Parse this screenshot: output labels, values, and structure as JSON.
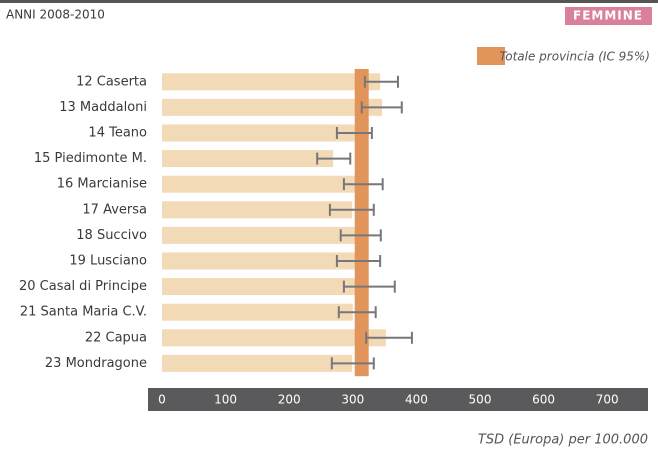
{
  "chart_data": {
    "type": "bar",
    "period": "ANNI 2008-2010",
    "badge": "FEMMINE",
    "x_label": "TSD (Europa) per 100.000",
    "categories": [
      "12 Caserta",
      "13 Maddaloni",
      "14 Teano",
      "15 Piedimonte M.",
      "16 Marcianise",
      "17 Aversa",
      "18 Succivo",
      "19 Lusciano",
      "20 Casal di Principe",
      "21 Santa Maria C.V.",
      "22 Capua",
      "23 Mondragone"
    ],
    "values": [
      343,
      346,
      303,
      269,
      314,
      299,
      311,
      308,
      325,
      300,
      352,
      299
    ],
    "ci_low": [
      319,
      314,
      275,
      244,
      286,
      264,
      281,
      275,
      286,
      278,
      321,
      267
    ],
    "ci_high": [
      371,
      377,
      330,
      296,
      347,
      333,
      344,
      343,
      366,
      336,
      393,
      333
    ],
    "color": "#f3dab6",
    "error_color": "#77777a",
    "province": {
      "name": "Totale provincia (IC 95%)",
      "low": 303,
      "high": 325,
      "color": "#e2955b"
    },
    "xlim": [
      0,
      780
    ],
    "xticks": [
      0,
      100,
      200,
      300,
      400,
      500,
      600,
      700
    ]
  }
}
